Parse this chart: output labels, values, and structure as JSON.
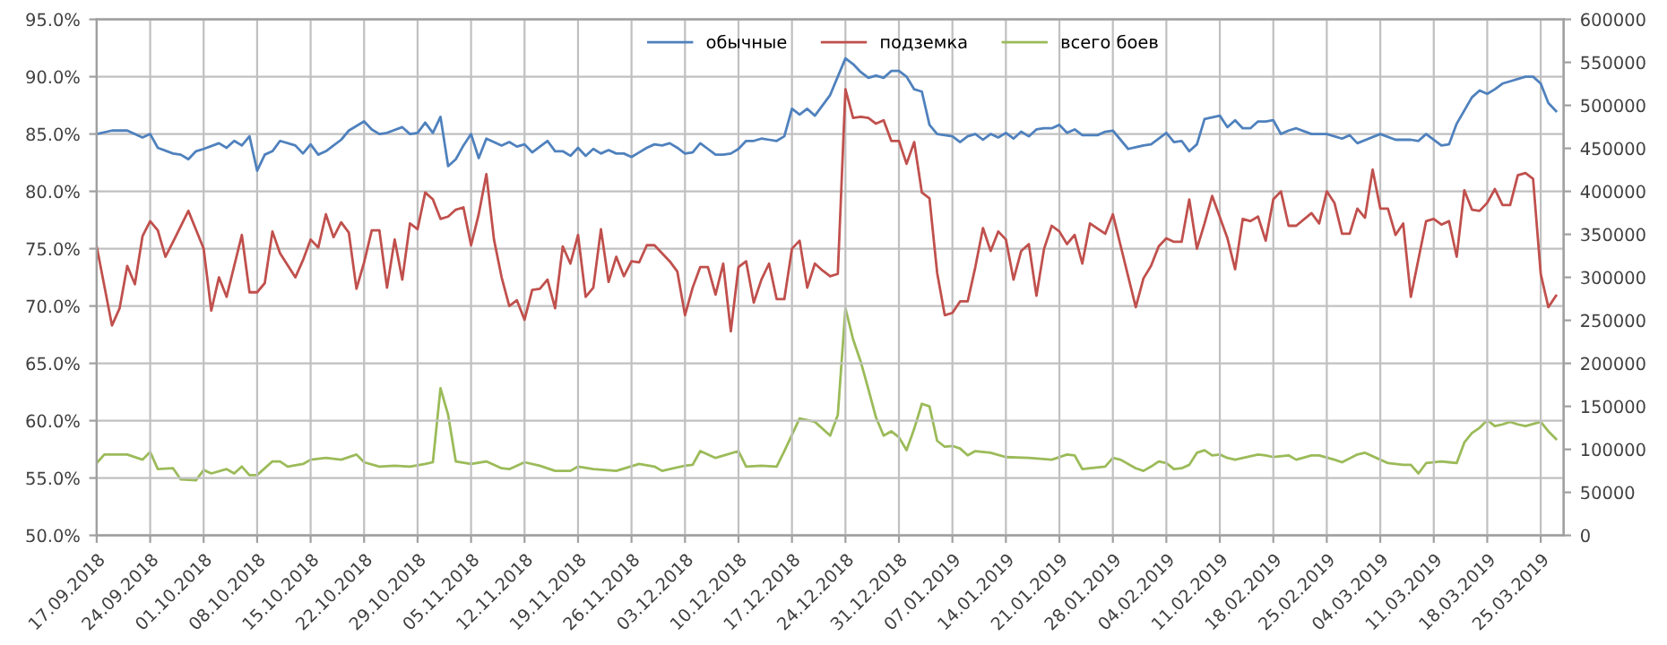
{
  "chart_data": {
    "type": "line",
    "legend": "top",
    "grid": true,
    "marker": "none",
    "line_style": "solid",
    "xlim": [
      "2018-09-17",
      "2019-03-28"
    ],
    "xticks": [
      {
        "value": "2018-09-17",
        "label": "17.09.2018"
      },
      {
        "value": "2018-09-24",
        "label": "24.09.2018"
      },
      {
        "value": "2018-10-01",
        "label": "01.10.2018"
      },
      {
        "value": "2018-10-08",
        "label": "08.10.2018"
      },
      {
        "value": "2018-10-15",
        "label": "15.10.2018"
      },
      {
        "value": "2018-10-22",
        "label": "22.10.2018"
      },
      {
        "value": "2018-10-29",
        "label": "29.10.2018"
      },
      {
        "value": "2018-11-05",
        "label": "05.11.2018"
      },
      {
        "value": "2018-11-12",
        "label": "12.11.2018"
      },
      {
        "value": "2018-11-19",
        "label": "19.11.2018"
      },
      {
        "value": "2018-11-26",
        "label": "26.11.2018"
      },
      {
        "value": "2018-12-03",
        "label": "03.12.2018"
      },
      {
        "value": "2018-12-10",
        "label": "10.12.2018"
      },
      {
        "value": "2018-12-17",
        "label": "17.12.2018"
      },
      {
        "value": "2018-12-24",
        "label": "24.12.2018"
      },
      {
        "value": "2018-12-31",
        "label": "31.12.2018"
      },
      {
        "value": "2019-01-07",
        "label": "07.01.2019"
      },
      {
        "value": "2019-01-14",
        "label": "14.01.2019"
      },
      {
        "value": "2019-01-21",
        "label": "21.01.2019"
      },
      {
        "value": "2019-01-28",
        "label": "28.01.2019"
      },
      {
        "value": "2019-02-04",
        "label": "04.02.2019"
      },
      {
        "value": "2019-02-11",
        "label": "11.02.2019"
      },
      {
        "value": "2019-02-18",
        "label": "18.02.2019"
      },
      {
        "value": "2019-02-25",
        "label": "25.02.2019"
      },
      {
        "value": "2019-03-04",
        "label": "04.03.2019"
      },
      {
        "value": "2019-03-11",
        "label": "11.03.2019"
      },
      {
        "value": "2019-03-18",
        "label": "18.03.2019"
      },
      {
        "value": "2019-03-25",
        "label": "25.03.2019"
      }
    ],
    "ylim": [
      50,
      95
    ],
    "yticks": [
      {
        "value": 50,
        "label": "50.0%"
      },
      {
        "value": 55,
        "label": "55.0%"
      },
      {
        "value": 60,
        "label": "60.0%"
      },
      {
        "value": 65,
        "label": "65.0%"
      },
      {
        "value": 70,
        "label": "70.0%"
      },
      {
        "value": 75,
        "label": "75.0%"
      },
      {
        "value": 80,
        "label": "80.0%"
      },
      {
        "value": 85,
        "label": "85.0%"
      },
      {
        "value": 90,
        "label": "90.0%"
      },
      {
        "value": 95,
        "label": "95.0%"
      }
    ],
    "y2lim": [
      0,
      600000
    ],
    "y2ticks": [
      0,
      50000,
      100000,
      150000,
      200000,
      250000,
      300000,
      350000,
      400000,
      450000,
      500000,
      550000,
      600000
    ],
    "series": [
      {
        "name": "обычные",
        "color": "#4f81bd",
        "x": [
          "2018-09-17",
          "2018-09-19",
          "2018-09-21",
          "2018-09-23",
          "2018-09-24",
          "2018-09-25",
          "2018-09-27",
          "2018-09-28",
          "2018-09-29",
          "2018-09-30",
          "2018-10-01",
          "2018-10-03",
          "2018-10-04",
          "2018-10-05",
          "2018-10-06",
          "2018-10-07",
          "2018-10-08",
          "2018-10-09",
          "2018-10-10",
          "2018-10-11",
          "2018-10-13",
          "2018-10-14",
          "2018-10-15",
          "2018-10-16",
          "2018-10-17",
          "2018-10-18",
          "2018-10-19",
          "2018-10-20",
          "2018-10-22",
          "2018-10-23",
          "2018-10-24",
          "2018-10-25",
          "2018-10-27",
          "2018-10-28",
          "2018-10-29",
          "2018-10-30",
          "2018-10-31",
          "2018-11-01",
          "2018-11-02",
          "2018-11-03",
          "2018-11-04",
          "2018-11-05",
          "2018-11-06",
          "2018-11-07",
          "2018-11-09",
          "2018-11-10",
          "2018-11-11",
          "2018-11-12",
          "2018-11-13",
          "2018-11-15",
          "2018-11-16",
          "2018-11-17",
          "2018-11-18",
          "2018-11-19",
          "2018-11-20",
          "2018-11-21",
          "2018-11-22",
          "2018-11-23",
          "2018-11-24",
          "2018-11-25",
          "2018-11-26",
          "2018-11-27",
          "2018-11-28",
          "2018-11-29",
          "2018-11-30",
          "2018-12-01",
          "2018-12-02",
          "2018-12-03",
          "2018-12-04",
          "2018-12-05",
          "2018-12-06",
          "2018-12-07",
          "2018-12-08",
          "2018-12-09",
          "2018-12-10",
          "2018-12-11",
          "2018-12-12",
          "2018-12-13",
          "2018-12-14",
          "2018-12-15",
          "2018-12-16",
          "2018-12-17",
          "2018-12-18",
          "2018-12-19",
          "2018-12-20",
          "2018-12-21",
          "2018-12-22",
          "2018-12-24",
          "2018-12-25",
          "2018-12-26",
          "2018-12-27",
          "2018-12-28",
          "2018-12-29",
          "2018-12-30",
          "2018-12-31",
          "2019-01-01",
          "2019-01-02",
          "2019-01-03",
          "2019-01-04",
          "2019-01-05",
          "2019-01-06",
          "2019-01-07",
          "2019-01-08",
          "2019-01-09",
          "2019-01-10",
          "2019-01-11",
          "2019-01-12",
          "2019-01-13",
          "2019-01-14",
          "2019-01-15",
          "2019-01-16",
          "2019-01-17",
          "2019-01-18",
          "2019-01-19",
          "2019-01-20",
          "2019-01-21",
          "2019-01-22",
          "2019-01-23",
          "2019-01-24",
          "2019-01-25",
          "2019-01-26",
          "2019-01-27",
          "2019-01-28",
          "2019-01-30",
          "2019-02-01",
          "2019-02-02",
          "2019-02-04",
          "2019-02-05",
          "2019-02-06",
          "2019-02-07",
          "2019-02-08",
          "2019-02-09",
          "2019-02-11",
          "2019-02-12",
          "2019-02-13",
          "2019-02-14",
          "2019-02-15",
          "2019-02-16",
          "2019-02-17",
          "2019-02-18",
          "2019-02-19",
          "2019-02-20",
          "2019-02-21",
          "2019-02-23",
          "2019-02-25",
          "2019-02-27",
          "2019-02-28",
          "2019-03-01",
          "2019-03-04",
          "2019-03-06",
          "2019-03-08",
          "2019-03-09",
          "2019-03-10",
          "2019-03-12",
          "2019-03-13",
          "2019-03-14",
          "2019-03-16",
          "2019-03-17",
          "2019-03-18",
          "2019-03-19",
          "2019-03-20",
          "2019-03-21",
          "2019-03-23",
          "2019-03-24",
          "2019-03-25",
          "2019-03-26",
          "2019-03-27"
        ],
        "values": [
          85.0,
          85.3,
          85.3,
          84.7,
          85.0,
          83.8,
          83.3,
          83.2,
          82.8,
          83.5,
          83.7,
          84.2,
          83.8,
          84.4,
          84.0,
          84.8,
          81.8,
          83.2,
          83.5,
          84.4,
          84.0,
          83.3,
          84.1,
          83.2,
          83.5,
          84.0,
          84.5,
          85.3,
          86.1,
          85.4,
          85.0,
          85.1,
          85.6,
          85.0,
          85.1,
          86.0,
          85.1,
          86.5,
          82.2,
          82.8,
          84.0,
          85.0,
          82.9,
          84.6,
          84.0,
          84.3,
          83.9,
          84.1,
          83.4,
          84.4,
          83.5,
          83.5,
          83.1,
          83.8,
          83.1,
          83.7,
          83.3,
          83.6,
          83.3,
          83.3,
          83.0,
          83.4,
          83.8,
          84.1,
          84.0,
          84.2,
          83.8,
          83.3,
          83.4,
          84.2,
          83.7,
          83.2,
          83.2,
          83.3,
          83.7,
          84.4,
          84.4,
          84.6,
          84.5,
          84.4,
          84.8,
          87.2,
          86.7,
          87.2,
          86.6,
          87.5,
          88.4,
          91.6,
          91.1,
          90.4,
          89.9,
          90.1,
          89.9,
          90.5,
          90.5,
          90.0,
          88.9,
          88.7,
          85.8,
          85.0,
          84.9,
          84.8,
          84.3,
          84.8,
          85.0,
          84.5,
          85.0,
          84.7,
          85.1,
          84.6,
          85.2,
          84.8,
          85.4,
          85.5,
          85.5,
          85.8,
          85.1,
          85.4,
          84.9,
          84.9,
          84.9,
          85.2,
          85.3,
          83.7,
          84.0,
          84.1,
          85.1,
          84.3,
          84.4,
          83.5,
          84.1,
          86.3,
          86.6,
          85.6,
          86.2,
          85.5,
          85.5,
          86.1,
          86.1,
          86.2,
          85.0,
          85.3,
          85.5,
          85.0,
          85.0,
          84.6,
          84.9,
          84.2,
          85.0,
          84.5,
          84.5,
          84.4,
          85.0,
          84.0,
          84.1,
          85.9,
          88.2,
          88.8,
          88.5,
          88.9,
          89.4,
          89.6,
          90.0,
          90.0,
          89.4,
          87.7,
          87.0
        ]
      },
      {
        "name": "подземка",
        "color": "#c0504d",
        "x": [
          "2018-09-17",
          "2018-09-19",
          "2018-09-20",
          "2018-09-21",
          "2018-09-22",
          "2018-09-23",
          "2018-09-24",
          "2018-09-25",
          "2018-09-26",
          "2018-09-27",
          "2018-09-29",
          "2018-10-01",
          "2018-10-02",
          "2018-10-03",
          "2018-10-04",
          "2018-10-06",
          "2018-10-07",
          "2018-10-08",
          "2018-10-09",
          "2018-10-10",
          "2018-10-11",
          "2018-10-13",
          "2018-10-14",
          "2018-10-15",
          "2018-10-16",
          "2018-10-17",
          "2018-10-18",
          "2018-10-19",
          "2018-10-20",
          "2018-10-21",
          "2018-10-22",
          "2018-10-23",
          "2018-10-24",
          "2018-10-25",
          "2018-10-26",
          "2018-10-27",
          "2018-10-28",
          "2018-10-29",
          "2018-10-30",
          "2018-10-31",
          "2018-11-01",
          "2018-11-02",
          "2018-11-03",
          "2018-11-04",
          "2018-11-05",
          "2018-11-06",
          "2018-11-07",
          "2018-11-08",
          "2018-11-09",
          "2018-11-10",
          "2018-11-11",
          "2018-11-12",
          "2018-11-13",
          "2018-11-14",
          "2018-11-15",
          "2018-11-16",
          "2018-11-17",
          "2018-11-18",
          "2018-11-19",
          "2018-11-20",
          "2018-11-21",
          "2018-11-22",
          "2018-11-23",
          "2018-11-24",
          "2018-11-25",
          "2018-11-26",
          "2018-11-27",
          "2018-11-28",
          "2018-11-29",
          "2018-11-30",
          "2018-12-01",
          "2018-12-02",
          "2018-12-03",
          "2018-12-04",
          "2018-12-05",
          "2018-12-06",
          "2018-12-07",
          "2018-12-08",
          "2018-12-09",
          "2018-12-10",
          "2018-12-11",
          "2018-12-12",
          "2018-12-13",
          "2018-12-14",
          "2018-12-15",
          "2018-12-16",
          "2018-12-17",
          "2018-12-18",
          "2018-12-19",
          "2018-12-20",
          "2018-12-21",
          "2018-12-22",
          "2018-12-23",
          "2018-12-24",
          "2018-12-25",
          "2018-12-26",
          "2018-12-27",
          "2018-12-28",
          "2018-12-29",
          "2018-12-30",
          "2018-12-31",
          "2019-01-01",
          "2019-01-02",
          "2019-01-03",
          "2019-01-04",
          "2019-01-05",
          "2019-01-06",
          "2019-01-07",
          "2019-01-08",
          "2019-01-09",
          "2019-01-10",
          "2019-01-11",
          "2019-01-12",
          "2019-01-13",
          "2019-01-14",
          "2019-01-15",
          "2019-01-16",
          "2019-01-17",
          "2019-01-18",
          "2019-01-19",
          "2019-01-20",
          "2019-01-21",
          "2019-01-22",
          "2019-01-23",
          "2019-01-24",
          "2019-01-25",
          "2019-01-27",
          "2019-01-28",
          "2019-01-29",
          "2019-01-30",
          "2019-01-31",
          "2019-02-01",
          "2019-02-02",
          "2019-02-03",
          "2019-02-04",
          "2019-02-05",
          "2019-02-06",
          "2019-02-07",
          "2019-02-08",
          "2019-02-09",
          "2019-02-10",
          "2019-02-12",
          "2019-02-13",
          "2019-02-14",
          "2019-02-15",
          "2019-02-16",
          "2019-02-17",
          "2019-02-18",
          "2019-02-19",
          "2019-02-20",
          "2019-02-21",
          "2019-02-23",
          "2019-02-24",
          "2019-02-25",
          "2019-02-26",
          "2019-02-27",
          "2019-02-28",
          "2019-03-01",
          "2019-03-02",
          "2019-03-03",
          "2019-03-04",
          "2019-03-05",
          "2019-03-06",
          "2019-03-07",
          "2019-03-08",
          "2019-03-10",
          "2019-03-11",
          "2019-03-12",
          "2019-03-13",
          "2019-03-14",
          "2019-03-15",
          "2019-03-16",
          "2019-03-17",
          "2019-03-18",
          "2019-03-19",
          "2019-03-20",
          "2019-03-21",
          "2019-03-22",
          "2019-03-23",
          "2019-03-24",
          "2019-03-25",
          "2019-03-26",
          "2019-03-27"
        ],
        "values": [
          75.2,
          68.3,
          69.8,
          73.5,
          71.9,
          76.1,
          77.4,
          76.6,
          74.3,
          75.6,
          78.3,
          75.0,
          69.6,
          72.5,
          70.8,
          76.2,
          71.2,
          71.2,
          72.0,
          76.5,
          74.6,
          72.5,
          74.0,
          75.8,
          75.1,
          78.0,
          76.0,
          77.3,
          76.4,
          71.5,
          73.8,
          76.6,
          76.6,
          71.6,
          75.8,
          72.3,
          77.2,
          76.7,
          79.9,
          79.3,
          77.6,
          77.8,
          78.4,
          78.6,
          75.3,
          78.0,
          81.5,
          75.8,
          72.5,
          70.0,
          70.5,
          68.8,
          71.4,
          71.5,
          72.3,
          69.8,
          75.2,
          73.7,
          76.2,
          70.8,
          71.6,
          76.7,
          72.1,
          74.3,
          72.6,
          73.9,
          73.8,
          75.3,
          75.3,
          74.6,
          73.9,
          73.0,
          69.2,
          71.6,
          73.4,
          73.4,
          71.0,
          73.7,
          67.8,
          73.4,
          73.9,
          70.3,
          72.3,
          73.7,
          70.6,
          70.6,
          75.0,
          75.7,
          71.6,
          73.7,
          73.1,
          72.6,
          72.8,
          88.9,
          86.4,
          86.5,
          86.4,
          85.9,
          86.2,
          84.4,
          84.4,
          82.4,
          84.3,
          79.9,
          79.4,
          72.9,
          69.2,
          69.4,
          70.4,
          70.4,
          73.4,
          76.8,
          74.8,
          76.5,
          75.8,
          72.3,
          74.8,
          75.4,
          70.9,
          75.0,
          77.0,
          76.5,
          75.4,
          76.2,
          73.7,
          77.2,
          76.3,
          78.0,
          75.3,
          72.6,
          69.9,
          72.4,
          73.5,
          75.2,
          75.9,
          75.6,
          75.6,
          79.3,
          75.0,
          77.2,
          79.6,
          75.9,
          73.2,
          77.6,
          77.4,
          77.8,
          75.7,
          79.3,
          80.0,
          77.0,
          77.0,
          78.1,
          77.2,
          80.0,
          79.0,
          76.3,
          76.3,
          78.5,
          77.7,
          81.9,
          78.5,
          78.5,
          76.2,
          77.2,
          70.8,
          77.4,
          77.6,
          77.1,
          77.4,
          74.3,
          80.1,
          78.4,
          78.3,
          79.0,
          80.2,
          78.8,
          78.8,
          81.4,
          81.6,
          81.1,
          72.8,
          69.9,
          70.9
        ]
      },
      {
        "name": "всего боев",
        "color": "#9bbb59",
        "axis": "y2",
        "x": [
          "2018-09-17",
          "2018-09-18",
          "2018-09-21",
          "2018-09-23",
          "2018-09-24",
          "2018-09-25",
          "2018-09-27",
          "2018-09-28",
          "2018-09-30",
          "2018-10-01",
          "2018-10-02",
          "2018-10-04",
          "2018-10-05",
          "2018-10-06",
          "2018-10-07",
          "2018-10-08",
          "2018-10-10",
          "2018-10-11",
          "2018-10-12",
          "2018-10-14",
          "2018-10-15",
          "2018-10-17",
          "2018-10-19",
          "2018-10-21",
          "2018-10-22",
          "2018-10-24",
          "2018-10-26",
          "2018-10-28",
          "2018-10-30",
          "2018-10-31",
          "2018-11-01",
          "2018-11-02",
          "2018-11-03",
          "2018-11-05",
          "2018-11-07",
          "2018-11-09",
          "2018-11-10",
          "2018-11-12",
          "2018-11-14",
          "2018-11-16",
          "2018-11-18",
          "2018-11-19",
          "2018-11-21",
          "2018-11-24",
          "2018-11-27",
          "2018-11-29",
          "2018-11-30",
          "2018-12-03",
          "2018-12-04",
          "2018-12-05",
          "2018-12-07",
          "2018-12-10",
          "2018-12-11",
          "2018-12-13",
          "2018-12-15",
          "2018-12-16",
          "2018-12-18",
          "2018-12-20",
          "2018-12-22",
          "2018-12-23",
          "2018-12-24",
          "2018-12-25",
          "2018-12-26",
          "2018-12-27",
          "2018-12-28",
          "2018-12-29",
          "2018-12-30",
          "2018-12-31",
          "2019-01-01",
          "2019-01-02",
          "2019-01-03",
          "2019-01-04",
          "2019-01-05",
          "2019-01-06",
          "2019-01-07",
          "2019-01-08",
          "2019-01-09",
          "2019-01-10",
          "2019-01-12",
          "2019-01-14",
          "2019-01-17",
          "2019-01-20",
          "2019-01-22",
          "2019-01-23",
          "2019-01-24",
          "2019-01-25",
          "2019-01-27",
          "2019-01-28",
          "2019-01-29",
          "2019-01-31",
          "2019-02-01",
          "2019-02-02",
          "2019-02-03",
          "2019-02-04",
          "2019-02-05",
          "2019-02-06",
          "2019-02-07",
          "2019-02-08",
          "2019-02-09",
          "2019-02-10",
          "2019-02-11",
          "2019-02-12",
          "2019-02-13",
          "2019-02-16",
          "2019-02-17",
          "2019-02-18",
          "2019-02-20",
          "2019-02-21",
          "2019-02-23",
          "2019-02-24",
          "2019-02-26",
          "2019-02-27",
          "2019-03-01",
          "2019-03-02",
          "2019-03-04",
          "2019-03-05",
          "2019-03-07",
          "2019-03-08",
          "2019-03-09",
          "2019-03-10",
          "2019-03-12",
          "2019-03-13",
          "2019-03-14",
          "2019-03-15",
          "2019-03-16",
          "2019-03-17",
          "2019-03-18",
          "2019-03-19",
          "2019-03-20",
          "2019-03-21",
          "2019-03-22",
          "2019-03-23",
          "2019-03-25",
          "2019-03-26",
          "2019-03-27"
        ],
        "values": [
          84000,
          94000,
          94000,
          88000,
          97000,
          77000,
          78000,
          65000,
          64000,
          76000,
          72000,
          77000,
          72000,
          80000,
          70000,
          70000,
          86000,
          86000,
          80000,
          83000,
          88000,
          90000,
          88000,
          94000,
          85000,
          80000,
          81000,
          80000,
          83000,
          85000,
          171000,
          140000,
          86000,
          83000,
          86000,
          78000,
          77000,
          85000,
          81000,
          75000,
          75000,
          80000,
          77000,
          75000,
          83000,
          80000,
          75000,
          81000,
          82000,
          98000,
          90000,
          98000,
          80000,
          81000,
          80000,
          98000,
          136000,
          132000,
          116000,
          140000,
          264000,
          228000,
          202000,
          170000,
          137000,
          116000,
          121000,
          114000,
          99000,
          124000,
          153000,
          150000,
          110000,
          103000,
          104000,
          101000,
          93000,
          98000,
          96000,
          91000,
          90000,
          88000,
          94000,
          93000,
          77000,
          78000,
          80000,
          90000,
          88000,
          78000,
          75000,
          80000,
          86000,
          84000,
          77000,
          78000,
          82000,
          96000,
          99000,
          93000,
          94000,
          90000,
          88000,
          94000,
          93000,
          91000,
          93000,
          88000,
          93000,
          93000,
          88000,
          85000,
          94000,
          96000,
          88000,
          84000,
          82000,
          82000,
          72000,
          84000,
          86000,
          85000,
          84000,
          108000,
          119000,
          125000,
          134000,
          127000,
          129000,
          132000,
          129000,
          127000,
          132000,
          121000,
          112000
        ]
      }
    ]
  }
}
